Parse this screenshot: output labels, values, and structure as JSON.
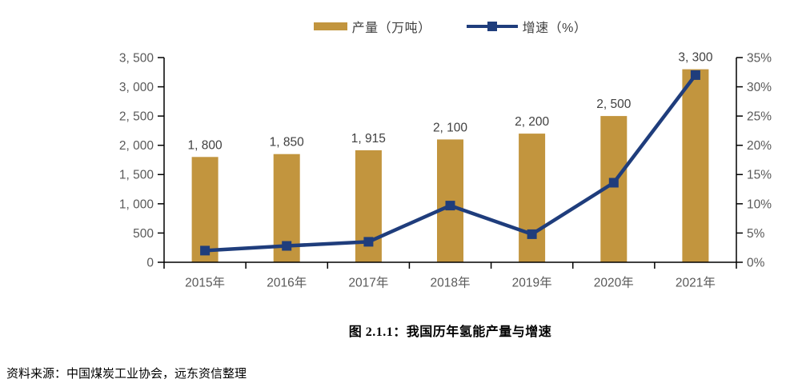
{
  "legend": {
    "production": "产量（万吨）",
    "growth": "增速（%）"
  },
  "caption": "图 2.1.1：我国历年氢能产量与增速",
  "source": "资料来源：中国煤炭工业协会，远东资信整理",
  "colors": {
    "bar": "#C2953E",
    "line": "#1F3D7C",
    "axis": "#000000",
    "tick_label": "#595959",
    "value_label": "#404040"
  },
  "chart_data": {
    "type": "combo",
    "title": "图 2.1.1：我国历年氢能产量与增速",
    "categories": [
      "2015年",
      "2016年",
      "2017年",
      "2018年",
      "2019年",
      "2020年",
      "2021年"
    ],
    "series": [
      {
        "name": "产量（万吨）",
        "type": "bar",
        "axis": "left",
        "color": "#C2953E",
        "values": [
          1800,
          1850,
          1915,
          2100,
          2200,
          2500,
          3300
        ],
        "labels": [
          "1, 800",
          "1, 850",
          "1, 915",
          "2, 100",
          "2, 200",
          "2, 500",
          "3, 300"
        ]
      },
      {
        "name": "增速（%）",
        "type": "line",
        "axis": "right",
        "color": "#1F3D7C",
        "values": [
          2.0,
          2.8,
          3.5,
          9.7,
          4.8,
          13.6,
          32.0
        ]
      }
    ],
    "left_axis": {
      "min": 0,
      "max": 3500,
      "step": 500,
      "tick_labels": [
        "0",
        "500",
        "1, 000",
        "1, 500",
        "2, 000",
        "2, 500",
        "3, 000",
        "3, 500"
      ]
    },
    "right_axis": {
      "min": 0,
      "max": 35,
      "step": 5,
      "tick_labels": [
        "0%",
        "5%",
        "10%",
        "15%",
        "20%",
        "25%",
        "30%",
        "35%"
      ]
    },
    "grid": false,
    "legend_position": "top"
  }
}
